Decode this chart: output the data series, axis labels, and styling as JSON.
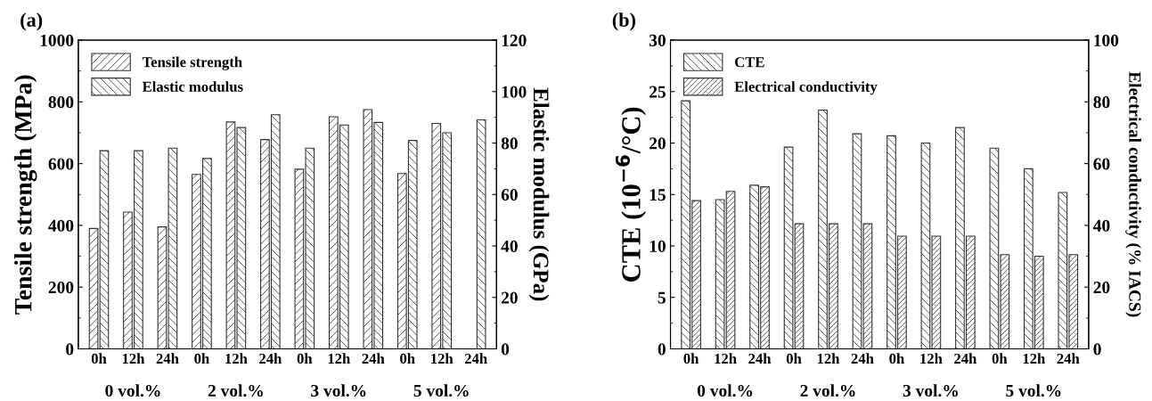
{
  "chart_data": [
    {
      "type": "bar",
      "title": "(a)",
      "ylabel": "Tensile strength (MPa)",
      "y2label": "Elastic modulus (GPa)",
      "categories": [
        "0h",
        "12h",
        "24h",
        "0h",
        "12h",
        "24h",
        "0h",
        "12h",
        "24h",
        "0h",
        "12h",
        "24h"
      ],
      "annotations": [
        "0 vol.%",
        "2 vol.%",
        "3 vol.%",
        "5 vol.%"
      ],
      "series": [
        {
          "name": "Tensile strength",
          "color": "#333333",
          "values": [
            390,
            443,
            395,
            565,
            735,
            678,
            582,
            752,
            775,
            568,
            730,
            null
          ]
        },
        {
          "name": "Elastic modulus",
          "color": "#333333",
          "axis": "y2",
          "values": [
            77,
            77,
            78,
            74,
            86,
            91,
            78,
            87,
            88,
            81,
            84,
            89
          ]
        }
      ],
      "ylim": [
        0,
        1000
      ],
      "yticks": [
        0,
        200,
        400,
        600,
        800,
        1000
      ],
      "y2lim": [
        0,
        120
      ],
      "y2ticks": [
        0,
        20,
        40,
        60,
        80,
        100,
        120
      ],
      "grid": false,
      "legend": "top left"
    },
    {
      "type": "bar",
      "title": "(b)",
      "ylabel": "CTE (10$^{−6}$/°C)",
      "y2label": "Electrical conductivity (% IACS)",
      "categories": [
        "0h",
        "12h",
        "24h",
        "0h",
        "12h",
        "24h",
        "0h",
        "12h",
        "24h",
        "0h",
        "12h",
        "24h"
      ],
      "annotations": [
        "0 vol.%",
        "2 vol.%",
        "3 vol.%",
        "5 vol.%"
      ],
      "series": [
        {
          "name": "CTE",
          "color": "#333333",
          "values": [
            24.1,
            14.5,
            15.9,
            19.6,
            23.2,
            20.9,
            20.7,
            20.0,
            21.5,
            19.5,
            17.5,
            15.2
          ]
        },
        {
          "name": "Electrical conductivity",
          "color": "#333333",
          "axis": "y2",
          "values": [
            48,
            51,
            52.5,
            40.5,
            40.5,
            40.5,
            36.5,
            36.5,
            36.5,
            30.5,
            30,
            30.5
          ]
        }
      ],
      "ylim": [
        0,
        30
      ],
      "yticks": [
        0,
        5,
        10,
        15,
        20,
        25,
        30
      ],
      "y2lim": [
        0,
        100
      ],
      "y2ticks": [
        0,
        20,
        40,
        60,
        80,
        100
      ],
      "grid": false,
      "legend": "top left"
    }
  ]
}
